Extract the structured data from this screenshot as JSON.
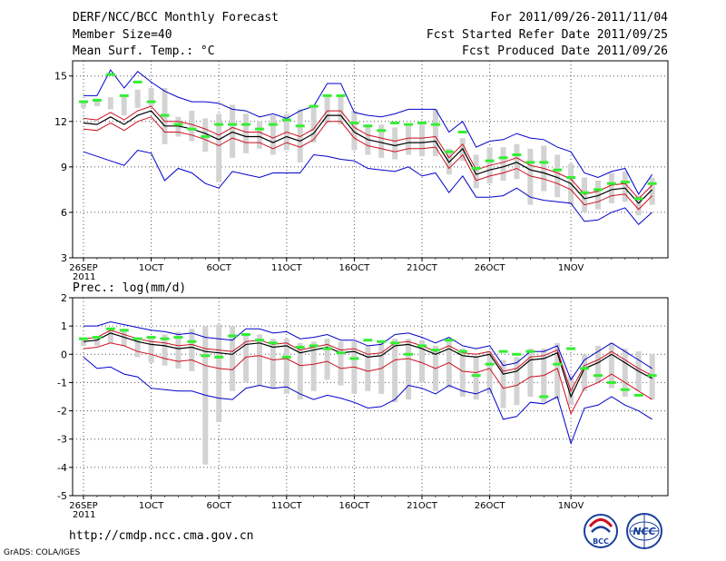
{
  "header": {
    "title": "DERF/NCC/BCC Monthly Forecast",
    "member_size": "Member Size=40",
    "variable": "Mean Surf. Temp.: °C",
    "period": "For 2011/09/26-2011/11/04",
    "started": "Fcst Started Refer Date 2011/09/25",
    "produced": "Fcst Produced Date 2011/09/26"
  },
  "footer": {
    "url": "http://cmdp.ncc.cma.gov.cn",
    "grads": "GrADS: COLA/IGES",
    "logo_bcc": "BCC",
    "logo_ncc": "NCC"
  },
  "colors": {
    "mean": "#000000",
    "inner": "#cc1020",
    "outer": "#0000cc",
    "obs": "#33ee33",
    "box": "#d3d3d3"
  },
  "chart_data": [
    {
      "type": "line",
      "title": "Mean Surf. Temp.: °C",
      "ylim": [
        3,
        16
      ],
      "yticks": [
        3,
        6,
        9,
        12,
        15
      ],
      "xticks": [
        {
          "day": 0,
          "label": "26SEP"
        },
        {
          "day": 5,
          "label": "1OCT"
        },
        {
          "day": 10,
          "label": "6OCT"
        },
        {
          "day": 15,
          "label": "11OCT"
        },
        {
          "day": 20,
          "label": "16OCT"
        },
        {
          "day": 25,
          "label": "21OCT"
        },
        {
          "day": 30,
          "label": "26OCT"
        },
        {
          "day": 36,
          "label": "1NOV"
        }
      ],
      "first_tick_year": "2011",
      "grid": "dotted",
      "series": [
        {
          "name": "ensemble-mean",
          "values": [
            11.9,
            11.8,
            12.3,
            11.8,
            12.4,
            12.7,
            11.7,
            11.7,
            11.5,
            11.2,
            10.8,
            11.3,
            11.0,
            11.0,
            10.6,
            11.0,
            10.7,
            11.2,
            12.4,
            12.4,
            11.3,
            10.8,
            10.6,
            10.4,
            10.6,
            10.6,
            10.7,
            9.3,
            10.2,
            8.5,
            8.8,
            9.0,
            9.3,
            8.8,
            8.6,
            8.3,
            7.9,
            6.9,
            7.1,
            7.5,
            7.6,
            6.6,
            7.5
          ]
        },
        {
          "name": "upper-inner",
          "values": [
            12.2,
            12.1,
            12.6,
            12.1,
            12.7,
            13.0,
            12.0,
            12.0,
            11.8,
            11.5,
            11.1,
            11.6,
            11.3,
            11.3,
            10.9,
            11.3,
            11.0,
            11.5,
            12.7,
            12.7,
            11.6,
            11.1,
            10.9,
            10.7,
            10.9,
            10.9,
            11.0,
            9.6,
            10.5,
            8.8,
            9.1,
            9.3,
            9.6,
            9.1,
            8.9,
            8.6,
            8.2,
            7.2,
            7.4,
            7.8,
            7.9,
            6.9,
            7.8
          ]
        },
        {
          "name": "lower-inner",
          "values": [
            11.5,
            11.4,
            11.9,
            11.4,
            12.0,
            12.3,
            11.3,
            11.3,
            11.1,
            10.8,
            10.4,
            10.9,
            10.6,
            10.6,
            10.2,
            10.6,
            10.3,
            10.8,
            12.0,
            12.0,
            10.9,
            10.4,
            10.2,
            10.0,
            10.2,
            10.2,
            10.3,
            8.9,
            9.8,
            8.1,
            8.4,
            8.6,
            8.9,
            8.4,
            8.2,
            7.9,
            7.5,
            6.5,
            6.7,
            7.1,
            7.2,
            6.2,
            7.1
          ]
        },
        {
          "name": "upper-outer",
          "values": [
            13.7,
            13.7,
            15.4,
            14.2,
            15.3,
            14.6,
            14.0,
            13.6,
            13.3,
            13.3,
            13.2,
            12.8,
            12.7,
            12.3,
            12.5,
            12.2,
            12.7,
            13.0,
            14.5,
            14.5,
            12.6,
            12.4,
            12.3,
            12.5,
            12.8,
            12.8,
            12.8,
            11.3,
            12.0,
            10.3,
            10.7,
            10.8,
            11.2,
            10.9,
            10.8,
            10.3,
            10.0,
            8.6,
            8.3,
            8.7,
            8.9,
            7.2,
            8.5
          ]
        },
        {
          "name": "lower-outer",
          "values": [
            10.0,
            9.7,
            9.4,
            9.1,
            10.1,
            9.9,
            8.1,
            8.9,
            8.6,
            7.9,
            7.6,
            8.7,
            8.5,
            8.3,
            8.6,
            8.6,
            8.6,
            9.8,
            9.7,
            9.5,
            9.4,
            8.9,
            8.8,
            8.7,
            9.0,
            8.4,
            8.6,
            7.3,
            8.4,
            7.0,
            7.0,
            7.1,
            7.6,
            7.0,
            6.8,
            6.7,
            6.6,
            5.4,
            5.5,
            6.0,
            6.3,
            5.2,
            6.0
          ]
        },
        {
          "name": "observed",
          "values": [
            13.3,
            13.4,
            15.1,
            13.7,
            14.6,
            13.3,
            12.4,
            11.8,
            11.5,
            11.0,
            11.8,
            11.8,
            11.8,
            11.5,
            11.8,
            12.1,
            11.7,
            13.0,
            13.7,
            13.7,
            11.9,
            11.7,
            11.4,
            11.9,
            11.8,
            11.9,
            11.8,
            10.0,
            11.3,
            8.9,
            9.4,
            9.6,
            9.8,
            9.3,
            9.3,
            8.8,
            8.3,
            7.3,
            7.5,
            7.9,
            8.0,
            6.9,
            7.9
          ]
        },
        {
          "name": "box-top",
          "values": [
            13.3,
            13.5,
            13.6,
            13.7,
            14.1,
            14.2,
            14.2,
            12.3,
            12.7,
            12.2,
            12.5,
            13.1,
            12.5,
            12.0,
            12.4,
            12.5,
            12.8,
            13.1,
            13.6,
            13.7,
            12.7,
            11.8,
            11.8,
            11.6,
            11.8,
            11.8,
            12.8,
            10.2,
            10.9,
            9.8,
            10.3,
            10.3,
            10.5,
            10.2,
            10.4,
            9.8,
            9.2,
            8.3,
            8.1,
            8.6,
            8.7,
            7.1,
            8.3
          ]
        },
        {
          "name": "box-bottom",
          "values": [
            12.9,
            13.0,
            12.8,
            12.4,
            12.9,
            13.0,
            10.5,
            11.0,
            10.7,
            10.0,
            8.0,
            9.6,
            9.9,
            10.2,
            9.8,
            10.1,
            9.3,
            10.6,
            11.9,
            11.8,
            10.1,
            9.8,
            9.6,
            9.5,
            9.8,
            9.7,
            9.7,
            8.5,
            9.4,
            7.6,
            7.9,
            8.1,
            8.2,
            6.5,
            7.4,
            7.0,
            6.5,
            6.0,
            6.2,
            6.6,
            6.7,
            5.8,
            6.5
          ]
        }
      ]
    },
    {
      "type": "line",
      "title": "Prec.: log(mm/d)",
      "ylim": [
        -5,
        2
      ],
      "yticks": [
        -5,
        -4,
        -3,
        -2,
        -1,
        0,
        1,
        2
      ],
      "xticks": [
        {
          "day": 0,
          "label": "26SEP"
        },
        {
          "day": 5,
          "label": "1OCT"
        },
        {
          "day": 10,
          "label": "6OCT"
        },
        {
          "day": 15,
          "label": "11OCT"
        },
        {
          "day": 20,
          "label": "16OCT"
        },
        {
          "day": 25,
          "label": "21OCT"
        },
        {
          "day": 30,
          "label": "26OCT"
        },
        {
          "day": 36,
          "label": "1NOV"
        }
      ],
      "first_tick_year": "2011",
      "grid": "dotted",
      "series": [
        {
          "name": "ensemble-mean",
          "values": [
            0.45,
            0.5,
            0.75,
            0.6,
            0.45,
            0.35,
            0.3,
            0.2,
            0.25,
            0.1,
            0.05,
            0.0,
            0.35,
            0.4,
            0.25,
            0.3,
            0.05,
            0.15,
            0.25,
            0.05,
            0.1,
            -0.1,
            -0.05,
            0.3,
            0.35,
            0.2,
            0.0,
            0.2,
            -0.05,
            -0.1,
            0.0,
            -0.7,
            -0.6,
            -0.2,
            -0.15,
            0.05,
            -1.5,
            -0.5,
            -0.3,
            0.0,
            -0.3,
            -0.6,
            -0.85
          ]
        },
        {
          "name": "upper-inner",
          "values": [
            0.55,
            0.6,
            0.85,
            0.7,
            0.55,
            0.45,
            0.4,
            0.3,
            0.35,
            0.2,
            0.15,
            0.1,
            0.45,
            0.5,
            0.35,
            0.4,
            0.15,
            0.25,
            0.35,
            0.15,
            0.2,
            0.0,
            0.05,
            0.4,
            0.45,
            0.3,
            0.1,
            0.3,
            0.05,
            0.0,
            0.1,
            -0.6,
            -0.5,
            -0.1,
            -0.05,
            0.15,
            -1.3,
            -0.4,
            -0.2,
            0.1,
            -0.2,
            -0.5,
            -0.75
          ]
        },
        {
          "name": "lower-inner",
          "values": [
            0.2,
            0.25,
            0.4,
            0.3,
            0.1,
            0.0,
            -0.15,
            -0.25,
            -0.2,
            -0.4,
            -0.5,
            -0.55,
            -0.1,
            -0.05,
            -0.2,
            -0.15,
            -0.4,
            -0.35,
            -0.25,
            -0.5,
            -0.45,
            -0.6,
            -0.5,
            -0.2,
            -0.15,
            -0.3,
            -0.5,
            -0.3,
            -0.6,
            -0.65,
            -0.5,
            -1.2,
            -1.1,
            -0.8,
            -0.75,
            -0.5,
            -2.1,
            -1.2,
            -1.0,
            -0.7,
            -1.0,
            -1.3,
            -1.6
          ]
        },
        {
          "name": "upper-outer",
          "values": [
            1.0,
            1.0,
            1.15,
            1.05,
            0.95,
            0.85,
            0.8,
            0.7,
            0.75,
            0.6,
            0.55,
            0.5,
            0.9,
            0.9,
            0.75,
            0.8,
            0.55,
            0.6,
            0.7,
            0.5,
            0.5,
            0.3,
            0.35,
            0.7,
            0.75,
            0.6,
            0.4,
            0.6,
            0.3,
            0.2,
            0.3,
            -0.4,
            -0.3,
            0.1,
            0.1,
            0.3,
            -0.9,
            -0.2,
            0.1,
            0.4,
            0.1,
            -0.2,
            -0.5
          ]
        },
        {
          "name": "lower-outer",
          "values": [
            -0.1,
            -0.5,
            -0.45,
            -0.7,
            -0.8,
            -1.2,
            -1.25,
            -1.3,
            -1.3,
            -1.45,
            -1.55,
            -1.6,
            -1.2,
            -1.1,
            -1.2,
            -1.15,
            -1.4,
            -1.6,
            -1.45,
            -1.55,
            -1.7,
            -1.9,
            -1.85,
            -1.6,
            -1.1,
            -1.2,
            -1.4,
            -1.1,
            -1.3,
            -1.4,
            -1.2,
            -2.3,
            -2.2,
            -1.7,
            -1.75,
            -1.5,
            -3.15,
            -1.9,
            -1.8,
            -1.5,
            -1.8,
            -2.0,
            -2.3
          ]
        },
        {
          "name": "observed",
          "values": [
            0.55,
            0.6,
            0.9,
            0.85,
            0.55,
            0.6,
            0.55,
            0.6,
            0.45,
            -0.05,
            -0.1,
            0.65,
            0.7,
            0.5,
            0.4,
            -0.1,
            0.25,
            0.3,
            0.2,
            0.05,
            -0.15,
            0.5,
            0.45,
            0.4,
            0.0,
            0.3,
            0.15,
            0.5,
            0.1,
            -0.75,
            -0.35,
            0.1,
            0.0,
            0.1,
            -1.5,
            -0.35,
            0.2,
            -0.5,
            -0.75,
            -1.0,
            -1.25,
            -1.45,
            -0.75
          ]
        },
        {
          "name": "box-top",
          "values": [
            0.6,
            0.6,
            0.9,
            0.85,
            0.6,
            0.6,
            0.7,
            0.8,
            0.9,
            1.0,
            1.05,
            1.0,
            0.7,
            0.7,
            0.55,
            0.55,
            0.4,
            0.45,
            0.55,
            0.45,
            0.45,
            0.3,
            0.4,
            0.55,
            0.55,
            0.5,
            0.3,
            0.55,
            0.2,
            -0.05,
            0.1,
            -0.2,
            -0.1,
            0.2,
            0.2,
            0.4,
            -0.75,
            0.0,
            0.3,
            0.4,
            0.2,
            0.1,
            0.0
          ]
        },
        {
          "name": "box-bottom",
          "values": [
            0.3,
            0.3,
            0.4,
            0.3,
            -0.1,
            -0.3,
            -0.4,
            -0.5,
            -0.6,
            -3.9,
            -2.4,
            -1.3,
            -1.0,
            -1.1,
            -1.2,
            -1.4,
            -1.6,
            -1.3,
            -0.9,
            -1.1,
            -1.4,
            -1.3,
            -1.4,
            -1.7,
            -1.6,
            -1.0,
            -1.3,
            -1.2,
            -1.5,
            -1.6,
            -1.4,
            -1.9,
            -1.8,
            -1.5,
            -1.7,
            -1.6,
            -1.8,
            -1.3,
            -1.0,
            -1.2,
            -1.5,
            -1.3,
            -1.6
          ]
        }
      ]
    }
  ]
}
